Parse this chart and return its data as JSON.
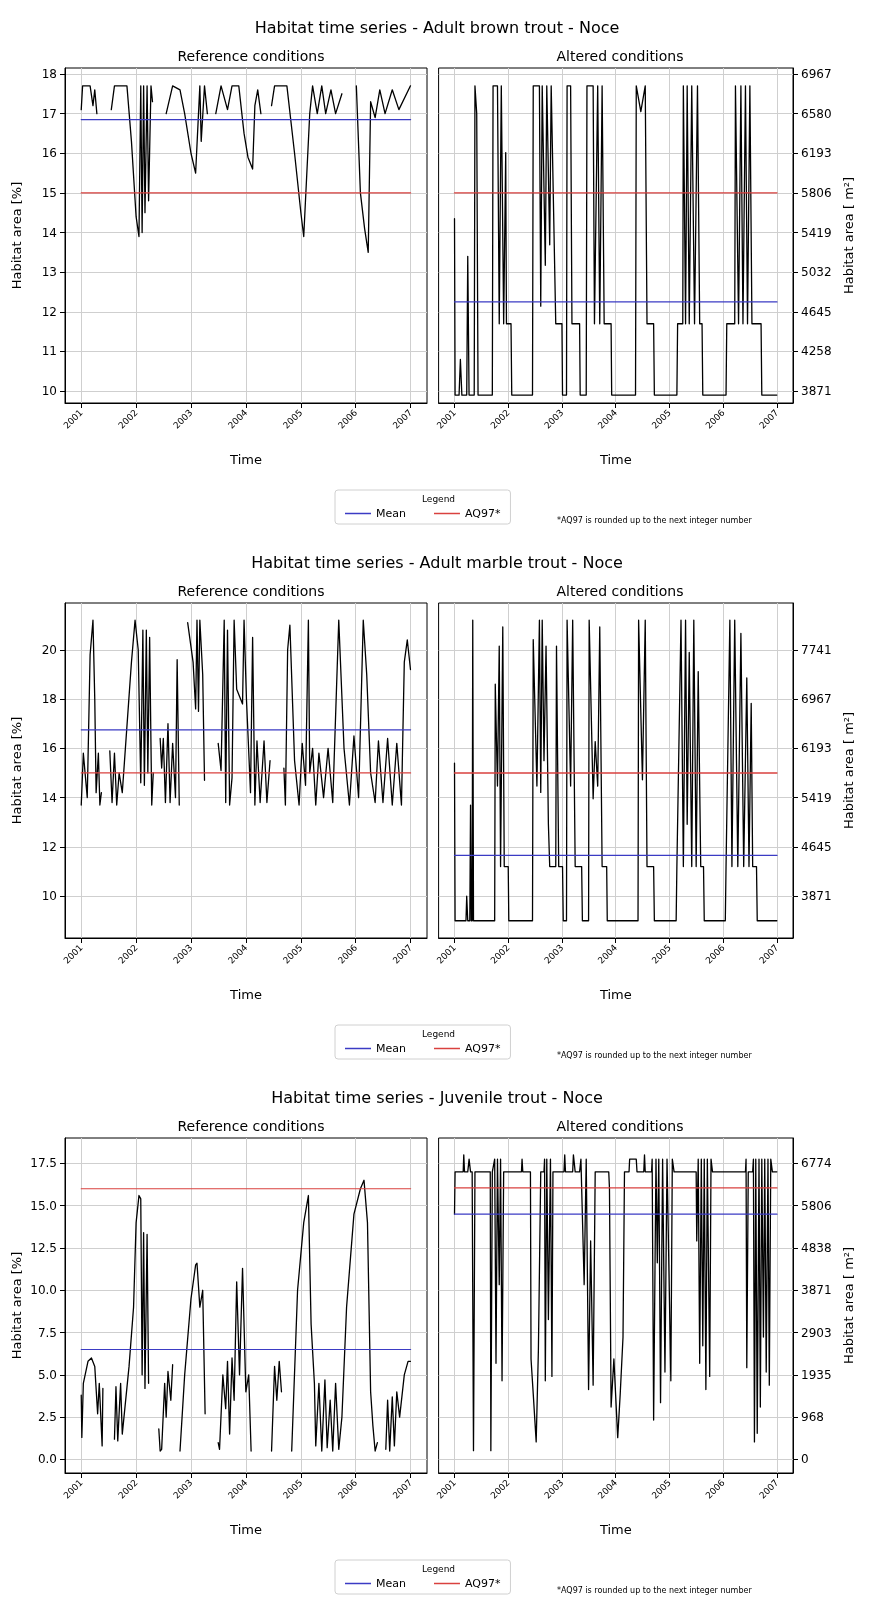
{
  "chart_data": [
    {
      "type": "line",
      "title": "Habitat time series - Adult brown trout - Noce",
      "subtitle": "Reference conditions",
      "xlabel": "Time",
      "ylabel": "Habitat area [%]",
      "legend_title": "Legend",
      "legend": "bottom",
      "annotations": [
        "*AQ97 is rounded up to the next integer number"
      ],
      "grid": true,
      "xlim": [
        "2000-09-15",
        "2007-04-20"
      ],
      "xticks": [
        "2001",
        "2002",
        "2003",
        "2004",
        "2005",
        "2006",
        "2007"
      ],
      "ylim": [
        9.7,
        18.15
      ],
      "yticks": [
        10,
        11,
        12,
        13,
        14,
        15,
        16,
        17,
        18
      ],
      "series": [
        {
          "color": "#000000",
          "x": [
            "2001-01-01",
            "2001-01-10",
            "2001-03-01",
            "2001-03-20",
            "2001-04-01",
            "2001-04-15",
            "2001-05-01",
            "2001-07-20",
            "2001-08-10",
            "2001-11-01",
            "2001-12-01",
            "2002-01-01",
            "2002-01-20",
            "2002-02-01",
            "2002-02-10",
            "2002-02-20",
            "2002-03-01",
            "2002-03-15",
            "2002-03-25",
            "2002-04-10",
            "2002-04-20",
            "2002-05-01",
            "2002-07-20",
            "2002-09-01",
            "2002-10-20",
            "2002-11-20",
            "2003-01-01",
            "2003-02-01",
            "2003-03-01",
            "2003-03-10",
            "2003-04-01",
            "2003-04-20",
            "2003-05-01",
            "2003-06-15",
            "2003-07-20",
            "2003-09-01",
            "2003-10-01",
            "2003-11-15",
            "2003-12-20",
            "2004-01-15",
            "2004-02-15",
            "2004-03-01",
            "2004-03-20",
            "2004-04-10",
            "2004-05-01",
            "2004-06-20",
            "2004-07-10",
            "2004-09-30",
            "2004-11-20",
            "2005-01-01",
            "2005-01-20",
            "2005-03-01",
            "2005-03-20",
            "2005-04-20",
            "2005-05-20",
            "2005-06-15",
            "2005-07-20",
            "2005-08-20",
            "2005-10-01",
            "2005-11-01",
            "2006-01-05",
            "2006-02-01",
            "2006-03-01",
            "2006-03-25",
            "2006-04-10",
            "2006-05-10",
            "2006-06-10",
            "2006-07-15",
            "2006-09-01",
            "2006-10-15",
            "2006-12-31"
          ],
          "values": [
            17.1,
            17.7,
            17.7,
            17.2,
            17.6,
            17.0,
            null,
            17.1,
            17.7,
            17.7,
            16.3,
            14.4,
            13.9,
            17.7,
            14.0,
            17.7,
            14.5,
            17.7,
            14.8,
            17.7,
            17.3,
            null,
            17.0,
            17.7,
            17.6,
            17.0,
            16.0,
            15.5,
            17.7,
            16.3,
            17.7,
            17.0,
            null,
            17.0,
            17.7,
            17.1,
            17.7,
            17.7,
            16.5,
            15.9,
            15.6,
            17.2,
            17.6,
            17.0,
            null,
            17.2,
            17.7,
            17.7,
            16.0,
            14.5,
            13.9,
            17.0,
            17.7,
            17.0,
            17.7,
            17.0,
            17.6,
            17.0,
            17.5,
            null,
            17.7,
            15.0,
            14.1,
            13.5,
            17.3,
            16.9,
            17.6,
            17.0,
            17.6,
            17.1,
            17.7
          ]
        },
        {
          "name": "Mean",
          "color": "#3b3bc4",
          "x": [
            "2001-01-01",
            "2007-01-01"
          ],
          "values": [
            16.85,
            16.85
          ]
        },
        {
          "name": "AQ97*",
          "color": "#d9413f",
          "x": [
            "2001-01-01",
            "2007-01-01"
          ],
          "values": [
            15,
            15
          ]
        }
      ]
    },
    {
      "type": "line",
      "subtitle": "Altered conditions",
      "xlabel": "Time",
      "y2label": "Habitat area [ m²]",
      "grid": true,
      "xlim": [
        "2000-09-15",
        "2007-04-20"
      ],
      "xticks": [
        "2001",
        "2002",
        "2003",
        "2004",
        "2005",
        "2006",
        "2007"
      ],
      "y2lim": [
        3755,
        7026
      ],
      "y2ticks": [
        3871,
        4258,
        4645,
        5032,
        5419,
        5806,
        6193,
        6580,
        6967
      ],
      "series": [
        {
          "color": "#000000",
          "axis": "y2",
          "x": [
            "2001-01-01",
            "2001-01-05",
            "2001-02-01",
            "2001-02-10",
            "2001-02-20",
            "2001-03-25",
            "2001-04-01",
            "2001-04-10",
            "2001-05-15",
            "2001-05-20",
            "2001-06-01",
            "2001-06-10",
            "2001-09-15",
            "2001-09-20",
            "2001-10-20",
            "2001-11-01",
            "2001-11-15",
            "2001-12-01",
            "2001-12-15",
            "2001-12-20",
            "2002-01-20",
            "2002-01-25",
            "2002-06-15",
            "2002-06-20",
            "2002-08-01",
            "2002-08-10",
            "2002-08-20",
            "2002-09-10",
            "2002-09-20",
            "2002-10-10",
            "2002-10-20",
            "2002-11-20",
            "2003-01-01",
            "2003-01-05",
            "2003-02-01",
            "2003-02-05",
            "2003-03-01",
            "2003-03-10",
            "2003-05-01",
            "2003-05-05",
            "2003-06-15",
            "2003-06-20",
            "2003-08-01",
            "2003-08-10",
            "2003-09-01",
            "2003-09-15",
            "2003-10-01",
            "2003-10-15",
            "2003-12-01",
            "2003-12-05",
            "2004-05-15",
            "2004-05-20",
            "2004-06-20",
            "2004-07-20",
            "2004-08-01",
            "2004-09-15",
            "2004-09-20",
            "2005-02-20",
            "2005-02-25",
            "2005-04-01",
            "2005-04-05",
            "2005-04-20",
            "2005-05-01",
            "2005-05-15",
            "2005-06-01",
            "2005-06-20",
            "2005-07-10",
            "2005-07-25",
            "2005-08-10",
            "2005-08-15",
            "2006-01-20",
            "2006-01-25",
            "2006-03-20",
            "2006-03-25",
            "2006-04-15",
            "2006-05-01",
            "2006-05-15",
            "2006-06-01",
            "2006-06-15",
            "2006-07-01",
            "2006-07-15",
            "2006-09-15",
            "2006-09-20",
            "2006-12-31"
          ],
          "values": [
            5555,
            3832,
            3832,
            4180,
            3832,
            3832,
            5187,
            3832,
            3832,
            6852,
            6580,
            3832,
            3832,
            6852,
            6852,
            4529,
            6852,
            4529,
            6200,
            4529,
            4529,
            3832,
            3832,
            6852,
            6852,
            4700,
            6852,
            5100,
            6852,
            5300,
            6852,
            4529,
            4529,
            3832,
            3832,
            6852,
            6852,
            4529,
            4529,
            3832,
            3832,
            6852,
            6852,
            4529,
            6852,
            4529,
            6852,
            4529,
            4529,
            3832,
            3832,
            6852,
            6600,
            6852,
            4529,
            4529,
            3832,
            3832,
            4529,
            4529,
            6852,
            4529,
            6852,
            4529,
            6852,
            4529,
            6852,
            4529,
            4529,
            3832,
            3832,
            4529,
            4529,
            6852,
            4529,
            6852,
            4529,
            6852,
            4529,
            6852,
            4529,
            4529,
            3832,
            3832
          ]
        },
        {
          "color": "#3b3bc4",
          "axis": "y2",
          "x": [
            "2001-01-01",
            "2007-01-01"
          ],
          "values": [
            4742,
            4742
          ]
        },
        {
          "color": "#d9413f",
          "axis": "y2",
          "x": [
            "2001-01-01",
            "2007-01-01"
          ],
          "values": [
            5806,
            5806
          ]
        }
      ]
    },
    {
      "type": "line",
      "title": "Habitat time series - Adult marble trout - Noce",
      "subtitle": "Reference conditions",
      "xlabel": "Time",
      "ylabel": "Habitat area [%]",
      "legend_title": "Legend",
      "legend": "bottom",
      "annotations": [
        "*AQ97 is rounded up to the next integer number"
      ],
      "grid": true,
      "xlim": [
        "2000-09-15",
        "2007-04-20"
      ],
      "xticks": [
        "2001",
        "2002",
        "2003",
        "2004",
        "2005",
        "2006",
        "2007"
      ],
      "ylim": [
        8.3,
        21.9
      ],
      "yticks": [
        10,
        12,
        14,
        16,
        18,
        20
      ],
      "series": [
        {
          "color": "#000000",
          "x": [
            "2001-01-01",
            "2001-01-15",
            "2001-02-10",
            "2001-03-01",
            "2001-03-20",
            "2001-04-01",
            "2001-04-10",
            "2001-04-25",
            "2001-05-05",
            "2001-05-15",
            "2001-06-01",
            "2001-07-10",
            "2001-07-25",
            "2001-08-10",
            "2001-08-25",
            "2001-09-10",
            "2001-10-01",
            "2001-12-01",
            "2001-12-25",
            "2002-01-15",
            "2002-02-01",
            "2002-02-15",
            "2002-02-25",
            "2002-03-10",
            "2002-03-20",
            "2002-04-01",
            "2002-04-15",
            "2002-04-25",
            "2002-05-15",
            "2002-06-10",
            "2002-06-20",
            "2002-07-01",
            "2002-07-15",
            "2002-08-01",
            "2002-08-15",
            "2002-09-01",
            "2002-09-20",
            "2002-10-01",
            "2002-10-15",
            "2002-11-01",
            "2002-12-10",
            "2003-01-15",
            "2003-02-01",
            "2003-02-10",
            "2003-02-20",
            "2003-03-01",
            "2003-03-20",
            "2003-04-01",
            "2003-05-01",
            "2003-07-01",
            "2003-07-20",
            "2003-08-10",
            "2003-08-20",
            "2003-09-01",
            "2003-09-15",
            "2003-10-01",
            "2003-10-15",
            "2003-11-01",
            "2003-12-10",
            "2003-12-20",
            "2004-01-05",
            "2004-02-01",
            "2004-02-15",
            "2004-03-01",
            "2004-03-15",
            "2004-04-05",
            "2004-05-01",
            "2004-05-20",
            "2004-06-10",
            "2004-07-01",
            "2004-09-10",
            "2004-09-20",
            "2004-10-05",
            "2004-10-20",
            "2004-11-20",
            "2004-12-20",
            "2005-01-10",
            "2005-02-01",
            "2005-02-20",
            "2005-03-01",
            "2005-03-20",
            "2005-04-10",
            "2005-05-01",
            "2005-06-01",
            "2005-07-01",
            "2005-08-01",
            "2005-09-10",
            "2005-10-15",
            "2005-11-20",
            "2005-12-20",
            "2006-01-20",
            "2006-02-20",
            "2006-03-15",
            "2006-04-10",
            "2006-05-10",
            "2006-06-01",
            "2006-07-01",
            "2006-08-01",
            "2006-09-01",
            "2006-10-01",
            "2006-11-01",
            "2006-11-20",
            "2006-12-10",
            "2006-12-31"
          ],
          "values": [
            13.7,
            15.8,
            14.0,
            19.8,
            21.2,
            18.0,
            14.2,
            15.8,
            13.7,
            14.2,
            null,
            15.9,
            13.8,
            15.8,
            13.7,
            15.0,
            14.2,
            19.5,
            21.2,
            20.0,
            14.6,
            20.8,
            14.5,
            20.8,
            15.0,
            20.5,
            13.7,
            15.0,
            null,
            16.4,
            15.2,
            16.4,
            13.8,
            17.0,
            13.8,
            16.2,
            14.0,
            19.6,
            13.7,
            null,
            21.1,
            19.5,
            17.6,
            21.2,
            17.5,
            21.2,
            19.0,
            14.7,
            null,
            16.2,
            15.1,
            21.2,
            13.8,
            20.8,
            13.7,
            14.8,
            21.2,
            18.4,
            17.8,
            21.2,
            18.0,
            14.2,
            20.5,
            13.7,
            16.3,
            13.8,
            16.3,
            13.8,
            15.5,
            null,
            15.2,
            13.7,
            20.0,
            21.0,
            15.5,
            13.7,
            16.2,
            14.5,
            21.2,
            15.0,
            16.0,
            13.7,
            15.8,
            14.0,
            16.0,
            13.8,
            21.2,
            16.0,
            13.7,
            16.5,
            14.0,
            21.2,
            19.0,
            15.0,
            13.8,
            16.3,
            13.8,
            16.4,
            13.7,
            16.2,
            13.7,
            19.5,
            20.4,
            19.2
          ]
        },
        {
          "name": "Mean",
          "color": "#3b3bc4",
          "x": [
            "2001-01-01",
            "2007-01-01"
          ],
          "values": [
            16.75,
            16.75
          ]
        },
        {
          "name": "AQ97*",
          "color": "#d9413f",
          "x": [
            "2001-01-01",
            "2007-01-01"
          ],
          "values": [
            15,
            15
          ]
        }
      ]
    },
    {
      "type": "line",
      "subtitle": "Altered conditions",
      "xlabel": "Time",
      "y2label": "Habitat area [ m²]",
      "grid": true,
      "xlim": [
        "2000-09-15",
        "2007-04-20"
      ],
      "xticks": [
        "2001",
        "2002",
        "2003",
        "2004",
        "2005",
        "2006",
        "2007"
      ],
      "y2lim": [
        3213,
        8477
      ],
      "y2ticks": [
        3871,
        4645,
        5419,
        6193,
        6967,
        7741
      ],
      "series": [
        {
          "color": "#000000",
          "axis": "y2",
          "x": [
            "2001-01-01",
            "2001-01-05",
            "2001-03-20",
            "2001-03-25",
            "2001-04-01",
            "2001-04-15",
            "2001-04-20",
            "2001-04-25",
            "2001-05-01",
            "2001-05-05",
            "2001-05-10",
            "2001-10-01",
            "2001-10-05",
            "2001-10-20",
            "2001-11-01",
            "2001-11-10",
            "2001-11-25",
            "2001-12-05",
            "2002-01-01",
            "2002-01-05",
            "2002-06-15",
            "2002-06-20",
            "2002-07-15",
            "2002-08-01",
            "2002-08-10",
            "2002-08-20",
            "2002-09-01",
            "2002-09-15",
            "2002-10-01",
            "2002-10-10",
            "2002-11-20",
            "2002-11-25",
            "2002-12-10",
            "2003-01-05",
            "2003-01-10",
            "2003-02-01",
            "2003-02-05",
            "2003-03-01",
            "2003-03-15",
            "2003-04-01",
            "2003-05-15",
            "2003-05-20",
            "2003-07-01",
            "2003-07-05",
            "2003-08-01",
            "2003-08-15",
            "2003-09-01",
            "2003-09-15",
            "2003-10-01",
            "2003-11-01",
            "2003-11-05",
            "2004-06-01",
            "2004-06-05",
            "2004-07-01",
            "2004-07-20",
            "2004-08-01",
            "2004-09-15",
            "2004-09-20",
            "2005-02-15",
            "2005-02-20",
            "2005-03-20",
            "2005-04-05",
            "2005-04-20",
            "2005-05-01",
            "2005-05-15",
            "2005-06-01",
            "2005-06-15",
            "2005-07-01",
            "2005-07-15",
            "2005-08-01",
            "2005-08-20",
            "2005-08-25",
            "2006-01-15",
            "2006-01-20",
            "2006-02-15",
            "2006-03-01",
            "2006-03-20",
            "2006-04-10",
            "2006-05-01",
            "2006-05-20",
            "2006-06-10",
            "2006-06-25",
            "2006-07-10",
            "2006-07-20",
            "2006-08-15",
            "2006-08-20",
            "2006-12-31"
          ],
          "values": [
            5960,
            3484,
            3484,
            3870,
            3484,
            3484,
            5300,
            3484,
            3484,
            8207,
            3484,
            3484,
            7200,
            5600,
            7800,
            4335,
            8100,
            4335,
            4335,
            3484,
            3484,
            7900,
            5600,
            8207,
            5500,
            8207,
            6000,
            7800,
            5000,
            4335,
            4335,
            7800,
            4335,
            4335,
            3484,
            3484,
            8207,
            5600,
            8207,
            4335,
            4335,
            3484,
            3484,
            8207,
            5400,
            6300,
            5600,
            8100,
            4335,
            4335,
            3484,
            3484,
            8207,
            5700,
            8207,
            4335,
            4335,
            3484,
            3484,
            4335,
            8207,
            4335,
            8207,
            5000,
            7700,
            4335,
            8207,
            4335,
            7400,
            4335,
            4335,
            3484,
            3484,
            4335,
            8207,
            4335,
            8207,
            4335,
            8000,
            4335,
            7300,
            4335,
            6900,
            4335,
            4335,
            3484,
            3484
          ]
        },
        {
          "color": "#3b3bc4",
          "axis": "y2",
          "x": [
            "2001-01-01",
            "2007-01-01"
          ],
          "values": [
            4510,
            4510
          ]
        },
        {
          "color": "#d9413f",
          "axis": "y2",
          "x": [
            "2001-01-01",
            "2007-01-01"
          ],
          "values": [
            5806,
            5806
          ]
        }
      ]
    },
    {
      "type": "line",
      "title": "Habitat time series - Juvenile trout - Noce",
      "subtitle": "Reference conditions",
      "xlabel": "Time",
      "ylabel": "Habitat area [%]",
      "legend_title": "Legend",
      "legend": "bottom",
      "annotations": [
        "*AQ97 is rounded up to the next integer number"
      ],
      "grid": true,
      "xlim": [
        "2000-09-15",
        "2007-04-20"
      ],
      "xticks": [
        "2001",
        "2002",
        "2003",
        "2004",
        "2005",
        "2006",
        "2007"
      ],
      "ylim": [
        -0.8,
        19.0
      ],
      "yticks": [
        {
          "value": 0,
          "label": "0.0"
        },
        {
          "value": 2.5,
          "label": "2.5"
        },
        {
          "value": 5,
          "label": "5.0"
        },
        {
          "value": 7.5,
          "label": "7.5"
        },
        {
          "value": 10,
          "label": "10.0"
        },
        {
          "value": 12.5,
          "label": "12.5"
        },
        {
          "value": 15,
          "label": "15.0"
        },
        {
          "value": 17.5,
          "label": "17.5"
        }
      ],
      "series": [
        {
          "color": "#000000",
          "x": [
            "2001-01-01",
            "2001-01-05",
            "2001-01-15",
            "2001-02-15",
            "2001-03-10",
            "2001-04-01",
            "2001-04-20",
            "2001-05-01",
            "2001-05-20",
            "2001-05-25",
            "2001-06-20",
            "2001-08-10",
            "2001-08-20",
            "2001-09-01",
            "2001-09-20",
            "2001-10-01",
            "2001-11-15",
            "2001-12-15",
            "2002-01-01",
            "2002-01-20",
            "2002-02-01",
            "2002-02-10",
            "2002-02-20",
            "2002-03-01",
            "2002-03-15",
            "2002-03-25",
            "2002-04-15",
            "2002-06-01",
            "2002-06-10",
            "2002-06-20",
            "2002-07-10",
            "2002-07-20",
            "2002-08-01",
            "2002-08-20",
            "2002-09-01",
            "2002-09-20",
            "2002-10-20",
            "2002-11-20",
            "2003-01-01",
            "2003-02-01",
            "2003-02-10",
            "2003-03-01",
            "2003-03-20",
            "2003-04-05",
            "2003-05-01",
            "2003-07-01",
            "2003-07-10",
            "2003-08-01",
            "2003-08-20",
            "2003-09-01",
            "2003-09-15",
            "2003-10-01",
            "2003-10-15",
            "2003-11-01",
            "2003-11-20",
            "2003-12-10",
            "2004-01-01",
            "2004-01-20",
            "2004-02-05",
            "2004-03-01",
            "2004-06-20",
            "2004-07-10",
            "2004-07-25",
            "2004-08-10",
            "2004-08-25",
            "2004-09-15",
            "2004-11-01",
            "2004-12-10",
            "2005-01-20",
            "2005-02-20",
            "2005-03-10",
            "2005-04-01",
            "2005-04-10",
            "2005-05-01",
            "2005-05-20",
            "2005-06-10",
            "2005-06-25",
            "2005-07-15",
            "2005-08-01",
            "2005-08-20",
            "2005-09-10",
            "2005-10-01",
            "2005-11-01",
            "2005-12-20",
            "2006-02-01",
            "2006-02-25",
            "2006-03-20",
            "2006-04-10",
            "2006-04-25",
            "2006-05-10",
            "2006-05-25",
            "2006-06-20",
            "2006-07-20",
            "2006-08-01",
            "2006-08-15",
            "2006-09-01",
            "2006-09-15",
            "2006-10-01",
            "2006-10-20",
            "2006-11-20",
            "2006-12-15",
            "2006-12-31"
          ],
          "values": [
            3.8,
            1.3,
            4.5,
            5.8,
            6.0,
            5.5,
            2.7,
            4.5,
            0.8,
            4.2,
            null,
            1.2,
            4.3,
            1.1,
            4.5,
            1.5,
            5.5,
            9.0,
            14.0,
            15.6,
            15.4,
            5.0,
            13.4,
            4.2,
            13.3,
            4.5,
            null,
            1.8,
            0.5,
            0.6,
            4.5,
            2.5,
            5.2,
            3.5,
            5.6,
            null,
            0.5,
            5.0,
            9.5,
            11.5,
            11.6,
            9.0,
            10.0,
            2.7,
            null,
            1.0,
            0.6,
            5.0,
            3.0,
            5.8,
            1.5,
            6.0,
            3.5,
            10.5,
            5.0,
            11.3,
            4.0,
            5.0,
            0.5,
            null,
            0.5,
            5.5,
            3.5,
            5.8,
            4.0,
            null,
            0.5,
            10.0,
            14.0,
            15.6,
            8.0,
            4.5,
            0.8,
            4.5,
            0.5,
            4.7,
            0.7,
            3.5,
            0.5,
            4.5,
            0.6,
            2.5,
            9.0,
            14.5,
            16.0,
            16.5,
            14.0,
            4.0,
            2.0,
            0.5,
            1.0,
            null,
            0.6,
            3.5,
            0.5,
            3.7,
            0.8,
            4.0,
            2.5,
            5.0,
            5.8,
            5.8
          ]
        },
        {
          "name": "Mean",
          "color": "#3b3bc4",
          "x": [
            "2001-01-01",
            "2007-01-01"
          ],
          "values": [
            6.5,
            6.5
          ]
        },
        {
          "name": "AQ97*",
          "color": "#d9413f",
          "x": [
            "2001-01-01",
            "2007-01-01"
          ],
          "values": [
            16,
            16
          ]
        }
      ]
    },
    {
      "type": "line",
      "subtitle": "Altered conditions",
      "xlabel": "Time",
      "y2label": "Habitat area [ m²]",
      "grid": true,
      "xlim": [
        "2000-09-15",
        "2007-04-20"
      ],
      "xticks": [
        "2001",
        "2002",
        "2003",
        "2004",
        "2005",
        "2006",
        "2007"
      ],
      "y2lim": [
        -310,
        7355
      ],
      "y2ticks": [
        0,
        968,
        1935,
        2903,
        3871,
        4838,
        5806,
        6774
      ],
      "series": [
        {
          "color": "#000000",
          "axis": "y2",
          "x": [
            "2001-01-01",
            "2001-01-05",
            "2001-03-01",
            "2001-03-05",
            "2001-03-10",
            "2001-04-01",
            "2001-04-10",
            "2001-04-20",
            "2001-05-01",
            "2001-05-10",
            "2001-05-20",
            "2001-09-01",
            "2001-09-05",
            "2001-09-15",
            "2001-10-01",
            "2001-10-10",
            "2001-10-20",
            "2001-11-01",
            "2001-11-10",
            "2001-11-20",
            "2001-12-01",
            "2002-04-01",
            "2002-04-05",
            "2002-04-10",
            "2002-06-01",
            "2002-06-05",
            "2002-06-20",
            "2002-07-10",
            "2002-07-25",
            "2002-08-10",
            "2002-09-01",
            "2002-09-05",
            "2002-09-10",
            "2002-09-20",
            "2002-10-01",
            "2002-10-15",
            "2002-10-25",
            "2002-11-01",
            "2003-01-15",
            "2003-01-20",
            "2003-01-25",
            "2003-03-15",
            "2003-03-20",
            "2003-04-01",
            "2003-05-01",
            "2003-05-10",
            "2003-06-01",
            "2003-06-15",
            "2003-07-01",
            "2003-07-15",
            "2003-08-01",
            "2003-08-15",
            "2003-11-15",
            "2003-11-20",
            "2003-12-01",
            "2003-12-20",
            "2004-01-15",
            "2004-02-01",
            "2004-02-20",
            "2004-03-01",
            "2004-04-01",
            "2004-04-05",
            "2004-05-20",
            "2004-05-25",
            "2004-07-10",
            "2004-07-15",
            "2004-07-20",
            "2004-09-01",
            "2004-09-05",
            "2004-09-15",
            "2004-10-01",
            "2004-10-10",
            "2004-10-20",
            "2004-11-01",
            "2004-11-15",
            "2004-12-01",
            "2004-12-15",
            "2005-01-10",
            "2005-01-20",
            "2005-02-01",
            "2005-07-01",
            "2005-07-05",
            "2005-07-15",
            "2005-07-25",
            "2005-08-05",
            "2005-08-15",
            "2005-08-25",
            "2005-09-05",
            "2005-09-15",
            "2005-10-01",
            "2005-10-10",
            "2005-10-20",
            "2006-06-01",
            "2006-06-05",
            "2006-06-10",
            "2006-06-20",
            "2006-07-20",
            "2006-07-25",
            "2006-08-01",
            "2006-08-10",
            "2006-08-20",
            "2006-09-01",
            "2006-09-10",
            "2006-09-20",
            "2006-10-01",
            "2006-10-10",
            "2006-10-20",
            "2006-11-01",
            "2006-11-10",
            "2006-11-20",
            "2006-12-01",
            "2006-12-31"
          ],
          "values": [
            5613,
            6581,
            6581,
            6970,
            6581,
            6581,
            6870,
            6581,
            6581,
            200,
            6581,
            6581,
            200,
            6581,
            6870,
            2200,
            6870,
            4000,
            6870,
            1800,
            6581,
            6581,
            6870,
            6581,
            6581,
            2300,
            1500,
            400,
            2500,
            6581,
            6581,
            6870,
            1800,
            6870,
            3200,
            6870,
            1900,
            6581,
            6581,
            6970,
            6581,
            6581,
            6970,
            6581,
            6581,
            6870,
            4000,
            6870,
            1600,
            5000,
            1700,
            6581,
            6581,
            6200,
            1200,
            2300,
            500,
            1500,
            2800,
            6581,
            6581,
            6870,
            6870,
            6581,
            6581,
            6970,
            6581,
            6581,
            6870,
            900,
            6870,
            4500,
            6870,
            1300,
            6870,
            2000,
            6870,
            1800,
            6870,
            6581,
            6581,
            5000,
            6870,
            2200,
            6870,
            2600,
            6870,
            1600,
            6870,
            1900,
            6870,
            6581,
            6581,
            6870,
            2100,
            6581,
            6581,
            6870,
            400,
            6870,
            600,
            6870,
            1200,
            6870,
            2800,
            6870,
            2000,
            6870,
            1700,
            6870,
            6581,
            6581
          ]
        },
        {
          "color": "#3b3bc4",
          "axis": "y2",
          "x": [
            "2001-01-01",
            "2007-01-01"
          ],
          "values": [
            5613,
            5613
          ]
        },
        {
          "color": "#d9413f",
          "axis": "y2",
          "x": [
            "2001-01-01",
            "2007-01-01"
          ],
          "values": [
            6213,
            6213
          ]
        }
      ]
    }
  ]
}
